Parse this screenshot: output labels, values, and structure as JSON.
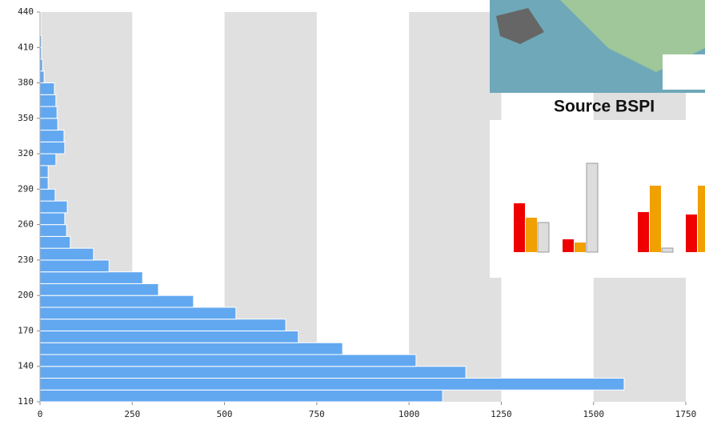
{
  "chart_data": {
    "type": "histogram",
    "orientation": "horizontal",
    "bins": [
      110,
      120,
      130,
      140,
      150,
      160,
      170,
      180,
      190,
      200,
      210,
      220,
      230,
      240,
      250,
      260,
      270,
      280,
      290,
      300,
      310,
      320,
      330,
      340,
      350,
      360,
      370,
      380,
      390,
      400,
      410,
      420,
      430,
      440
    ],
    "values": [
      1091,
      1583,
      1154,
      1019,
      820,
      700,
      666,
      531,
      416,
      321,
      278,
      187,
      145,
      82,
      72,
      67,
      74,
      41,
      22,
      22,
      43,
      67,
      65,
      48,
      46,
      43,
      39,
      11,
      7,
      4,
      4,
      2,
      2
    ],
    "color": "#62a8f0",
    "xlim": [
      0,
      1750
    ],
    "xticks": [
      0,
      250,
      500,
      750,
      1000,
      1250,
      1500,
      1750
    ],
    "ylim": [
      110,
      440
    ],
    "yticks": [
      110,
      140,
      170,
      200,
      230,
      260,
      290,
      320,
      350,
      380,
      410,
      440
    ],
    "band_shading": true,
    "band_color": "#e0e0e0",
    "overlay_caption": "Source BSPI"
  }
}
